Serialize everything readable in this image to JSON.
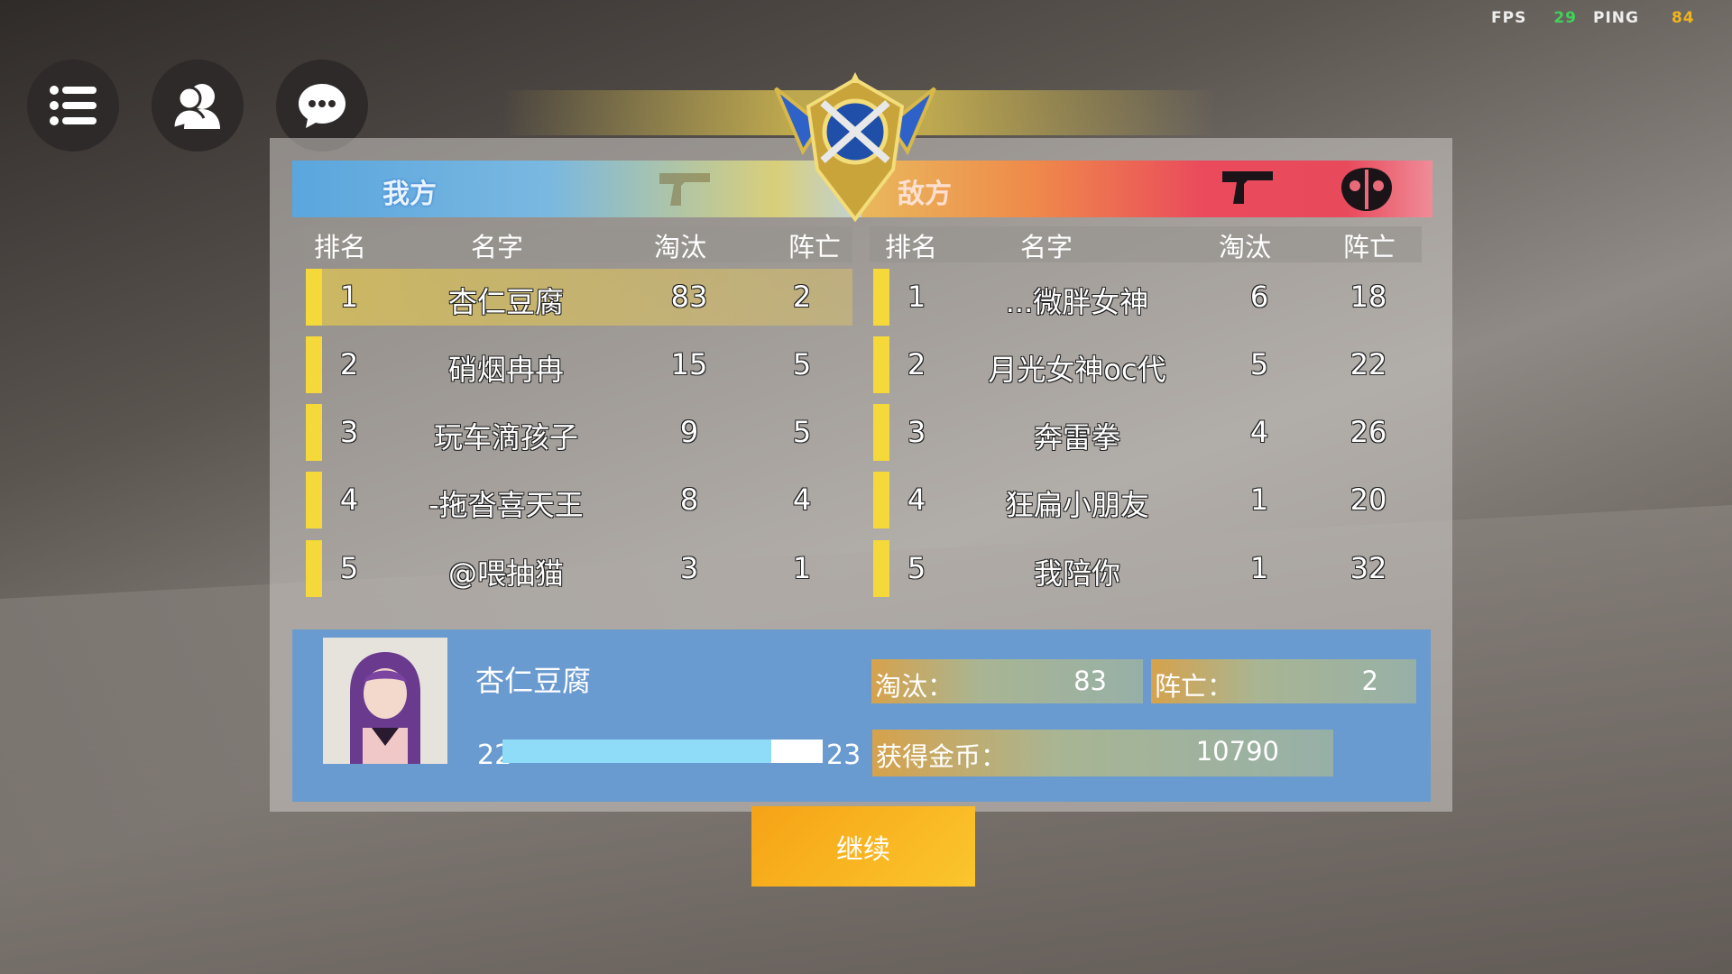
{
  "hud": {
    "fps_label": "FPS",
    "fps": "29",
    "ping_label": "PING",
    "ping": "84",
    "fps_color": "#3fd35a",
    "ping_color": "#f0b51e"
  },
  "toolbar": {
    "menu_icon": "list-icon",
    "friends_icon": "users-icon",
    "chat_icon": "chat-bubble-icon"
  },
  "teams": {
    "ally": {
      "label": "我方",
      "color": "#5aa6de"
    },
    "enemy": {
      "label": "敌方",
      "color": "#ea4a5c"
    }
  },
  "columns": [
    "排名",
    "名字",
    "淘汰",
    "阵亡"
  ],
  "ally_rows": [
    {
      "rank": "1",
      "name": "杏仁豆腐",
      "kills": "83",
      "deaths": "2",
      "highlight": true
    },
    {
      "rank": "2",
      "name": "硝烟冉冉",
      "kills": "15",
      "deaths": "5"
    },
    {
      "rank": "3",
      "name": "玩车滴孩子",
      "kills": "9",
      "deaths": "5"
    },
    {
      "rank": "4",
      "name": "-拖沓喜天王",
      "kills": "8",
      "deaths": "4"
    },
    {
      "rank": "5",
      "name": "@喂抽猫",
      "kills": "3",
      "deaths": "1"
    }
  ],
  "enemy_rows": [
    {
      "rank": "1",
      "name": "...微胖女神",
      "kills": "6",
      "deaths": "18"
    },
    {
      "rank": "2",
      "name": "月光女神oc代",
      "kills": "5",
      "deaths": "22"
    },
    {
      "rank": "3",
      "name": "奔雷拳",
      "kills": "4",
      "deaths": "26"
    },
    {
      "rank": "4",
      "name": "狂扁小朋友",
      "kills": "1",
      "deaths": "20"
    },
    {
      "rank": "5",
      "name": "我陪你",
      "kills": "1",
      "deaths": "32"
    }
  ],
  "player": {
    "name": "杏仁豆腐",
    "level": "22",
    "next_level": "23",
    "xp_progress": 0.84,
    "kills_label": "淘汰：",
    "kills": "83",
    "deaths_label": "阵亡：",
    "deaths": "2",
    "coins_label": "获得金币：",
    "coins": "10790"
  },
  "continue_label": "继续"
}
